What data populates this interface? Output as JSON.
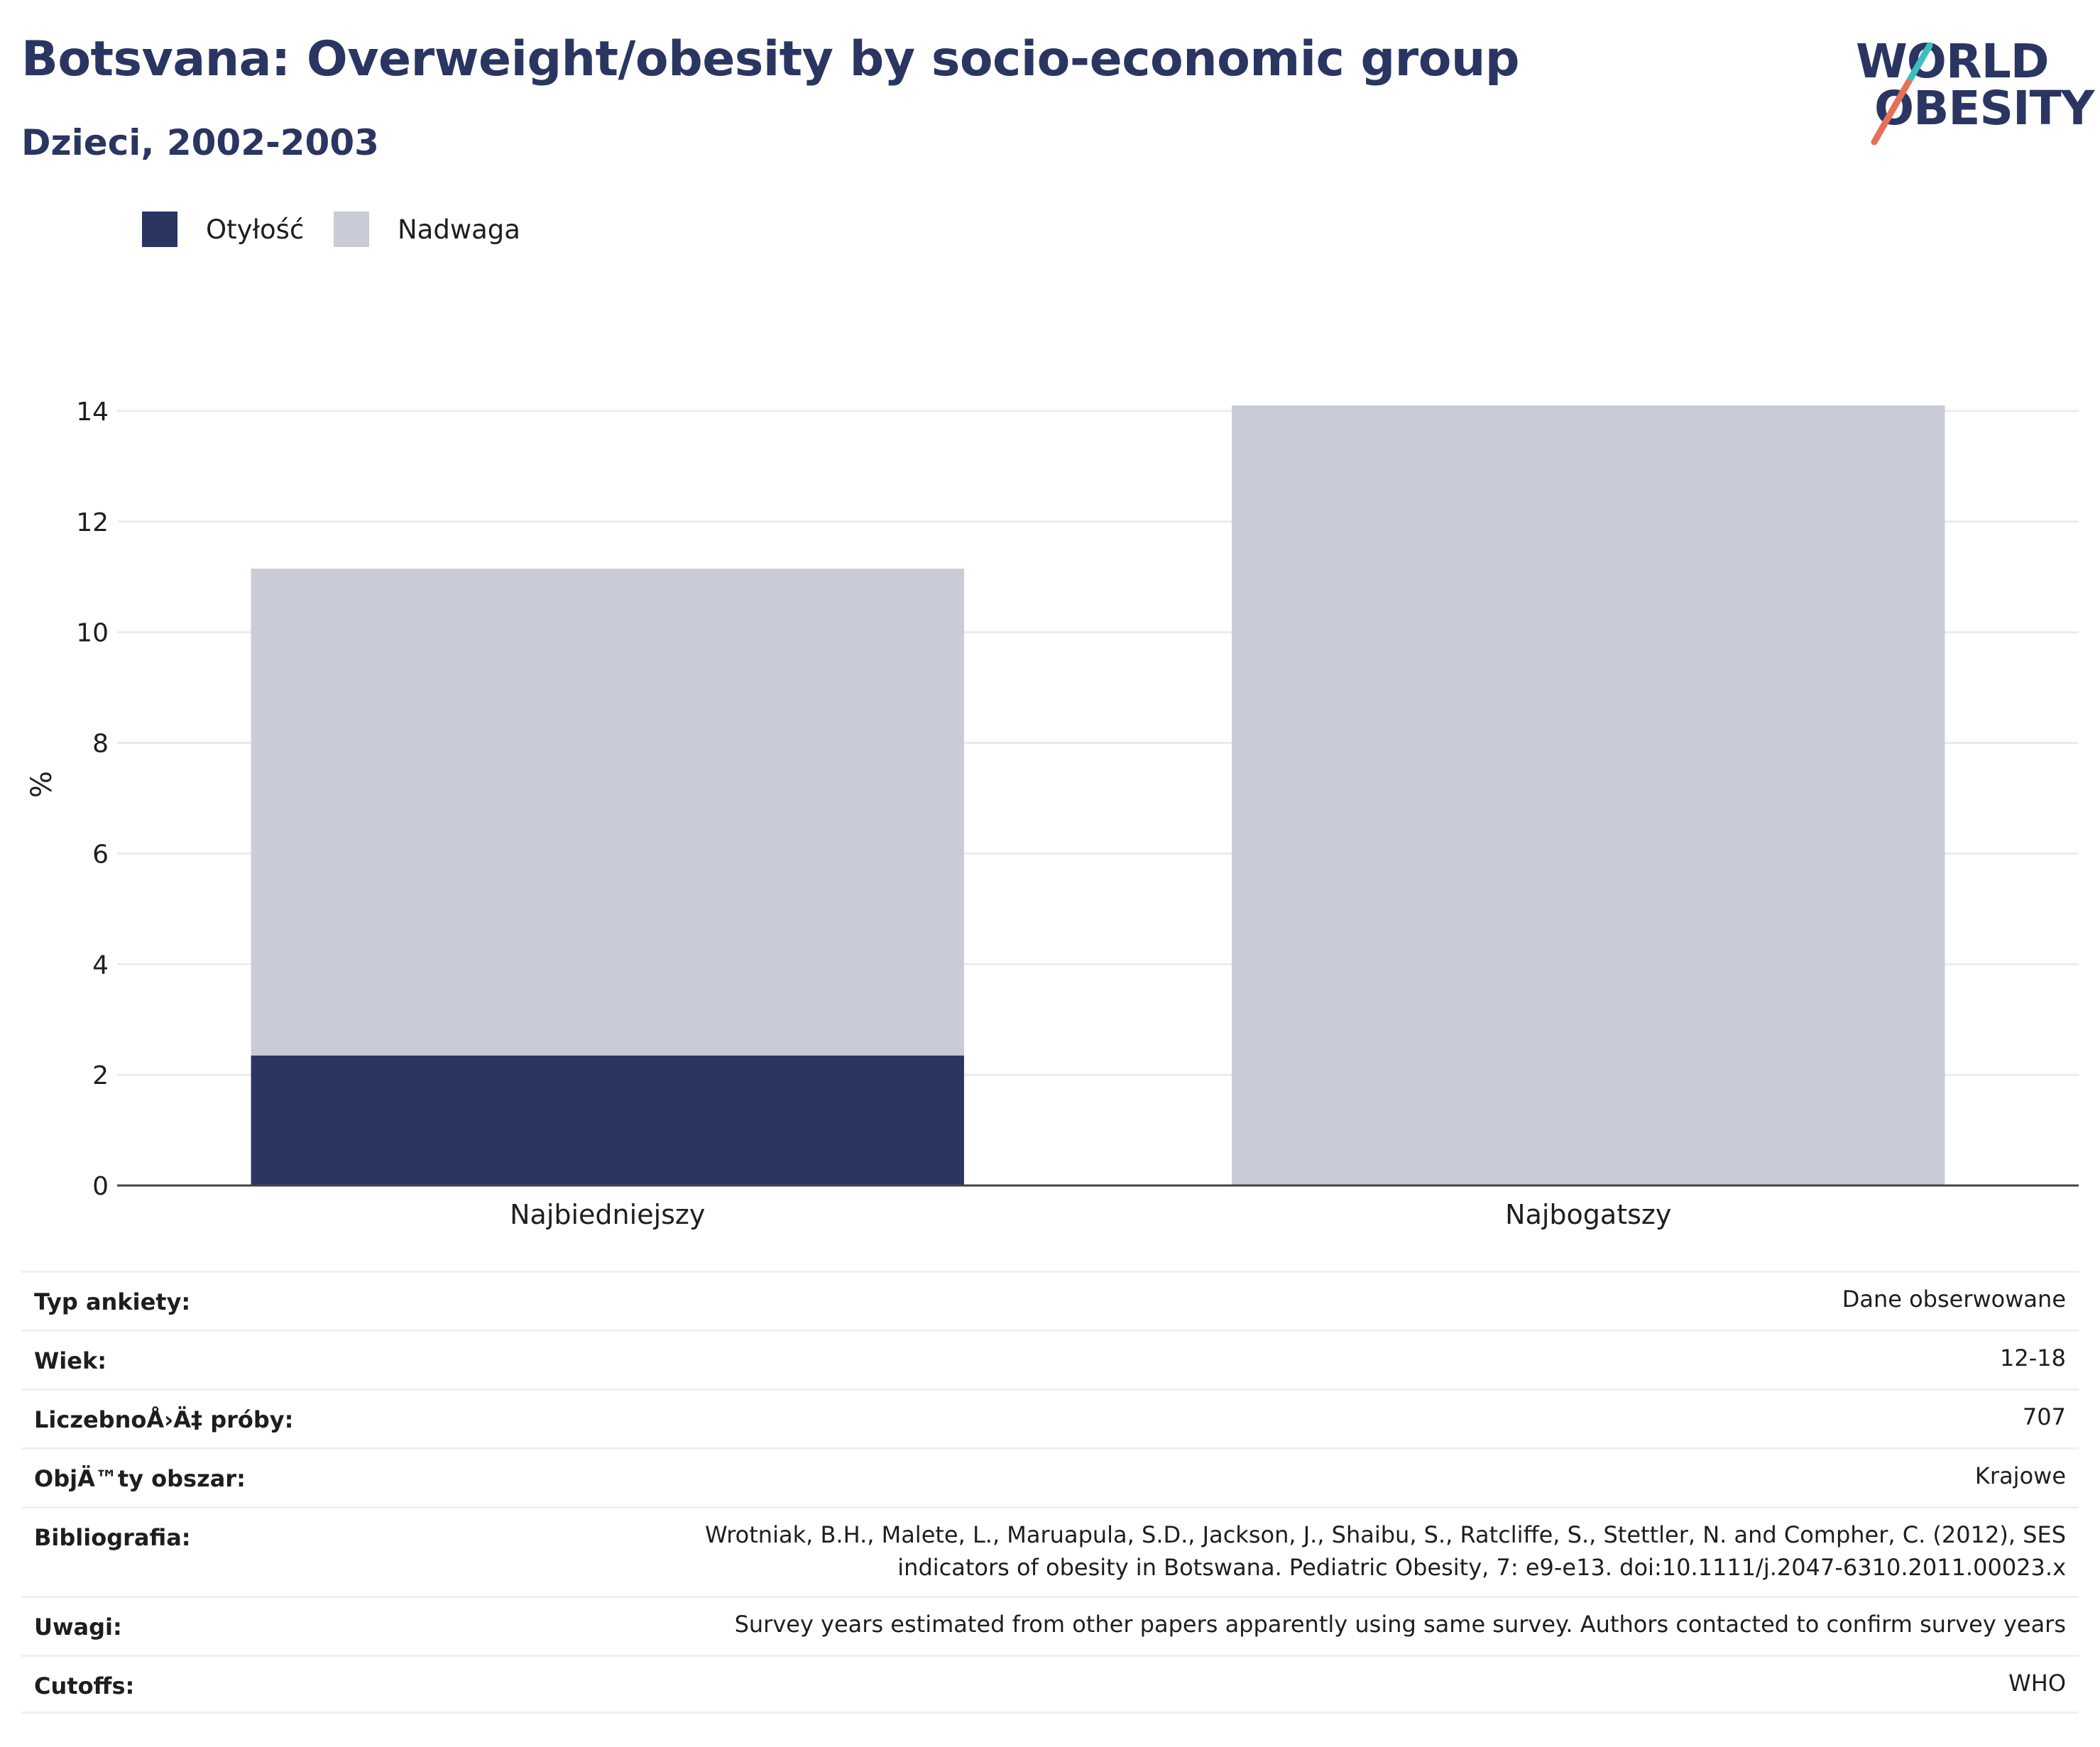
{
  "header": {
    "title": "Botsvana: Overweight/obesity by socio-economic group",
    "subtitle": "Dzieci, 2002-2003"
  },
  "logo": {
    "line1": "WORLD",
    "line2": "OBESITY",
    "colors": {
      "text": "#2a3562",
      "slash_top": "#3bbfbf",
      "slash_bottom": "#e8705a"
    }
  },
  "legend": [
    {
      "label": "Otyłość",
      "color": "#2a3562"
    },
    {
      "label": "Nadwaga",
      "color": "#c9cbd6"
    }
  ],
  "chart_data": {
    "type": "bar",
    "stacked": true,
    "categories": [
      "Najbiedniejszy",
      "Najbogatszy"
    ],
    "series": [
      {
        "name": "Otyłość",
        "color": "#2a3562",
        "values": [
          2.35,
          0
        ]
      },
      {
        "name": "Nadwaga",
        "color": "#c9cbd6",
        "values": [
          8.8,
          14.1
        ]
      }
    ],
    "ylabel": "%",
    "ylim": [
      0,
      14.5
    ],
    "yticks": [
      0,
      2,
      4,
      6,
      8,
      10,
      12,
      14
    ],
    "grid": true,
    "legend_position": "top-left"
  },
  "meta": [
    {
      "key": "Typ ankiety:",
      "value": "Dane obserwowane"
    },
    {
      "key": "Wiek:",
      "value": "12-18"
    },
    {
      "key": "LiczebnoÅ›Ä‡ próby:",
      "value": "707"
    },
    {
      "key": "ObjÄ™ty obszar:",
      "value": "Krajowe"
    },
    {
      "key": "Bibliografia:",
      "value": "Wrotniak, B.H., Malete, L., Maruapula, S.D., Jackson, J., Shaibu, S., Ratcliffe, S., Stettler, N. and Compher, C. (2012), SES indicators of obesity in Botswana. Pediatric Obesity, 7: e9-e13. doi:10.1111/j.2047-6310.2011.00023.x"
    },
    {
      "key": "Uwagi:",
      "value": "Survey years estimated from other papers apparently using same survey. Authors contacted to confirm survey years"
    },
    {
      "key": "Cutoffs:",
      "value": "WHO"
    }
  ]
}
